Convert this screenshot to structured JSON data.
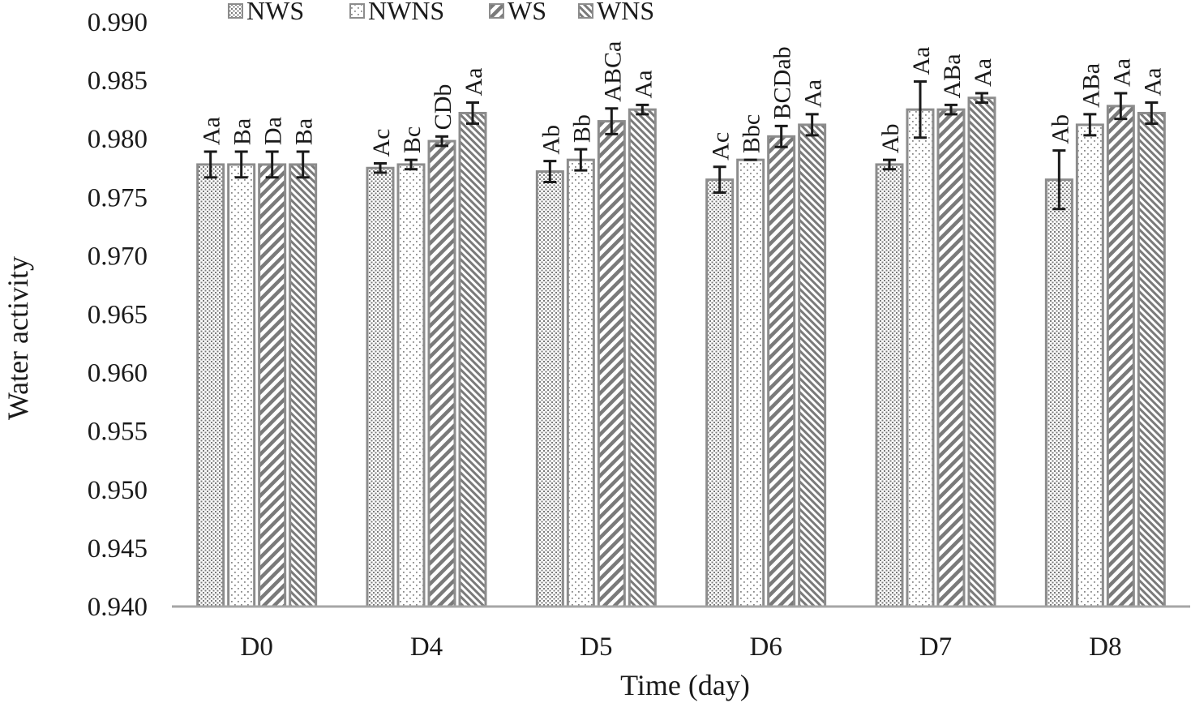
{
  "chart_data": {
    "type": "bar",
    "title": "",
    "xlabel": "Time (day)",
    "ylabel": "Water activity",
    "ylim": [
      0.94,
      0.99
    ],
    "y_ticks": [
      "0.940",
      "0.945",
      "0.950",
      "0.955",
      "0.960",
      "0.965",
      "0.970",
      "0.975",
      "0.980",
      "0.985",
      "0.990"
    ],
    "grid": false,
    "legend_position": "top",
    "categories": [
      "D0",
      "D4",
      "D5",
      "D6",
      "D7",
      "D8"
    ],
    "series": [
      {
        "name": "NWS",
        "pattern": "dots-dense",
        "values": [
          0.9778,
          0.9775,
          0.9772,
          0.9765,
          0.9778,
          0.9765
        ],
        "errors": [
          0.0011,
          0.0004,
          0.0009,
          0.0011,
          0.0004,
          0.0025
        ],
        "labels": [
          "Aa",
          "Ac",
          "Ab",
          "Ac",
          "Ab",
          "Ab"
        ]
      },
      {
        "name": "NWNS",
        "pattern": "dots-sparse",
        "values": [
          0.9778,
          0.9778,
          0.9782,
          0.9782,
          0.9825,
          0.9812
        ],
        "errors": [
          0.0011,
          0.0004,
          0.0009,
          0.0,
          0.0024,
          0.0009
        ],
        "labels": [
          "Ba",
          "Bc",
          "Bb",
          "Bbc",
          "Aa",
          "ABa"
        ]
      },
      {
        "name": "WS",
        "pattern": "diagonal-wide",
        "values": [
          0.9778,
          0.9798,
          0.9815,
          0.9802,
          0.9825,
          0.9828
        ],
        "errors": [
          0.0011,
          0.0004,
          0.0011,
          0.0009,
          0.0004,
          0.0011
        ],
        "labels": [
          "Da",
          "CDb",
          "ABCa",
          "BCDab",
          "ABa",
          "Aa"
        ]
      },
      {
        "name": "WNS",
        "pattern": "diagonal-dense",
        "values": [
          0.9778,
          0.9822,
          0.9825,
          0.9812,
          0.9835,
          0.9822
        ],
        "errors": [
          0.0011,
          0.0009,
          0.0004,
          0.0009,
          0.0004,
          0.0009
        ],
        "labels": [
          "Ba",
          "Aa",
          "Aa",
          "Aa",
          "Aa",
          "Aa"
        ]
      }
    ],
    "colors": {
      "bar_stroke": "#8c8c8c",
      "pattern_ink": "#7a7a7a",
      "error_bar": "#1a1a1a",
      "axis": "#a6a6a6",
      "text": "#1a1a1a"
    }
  }
}
